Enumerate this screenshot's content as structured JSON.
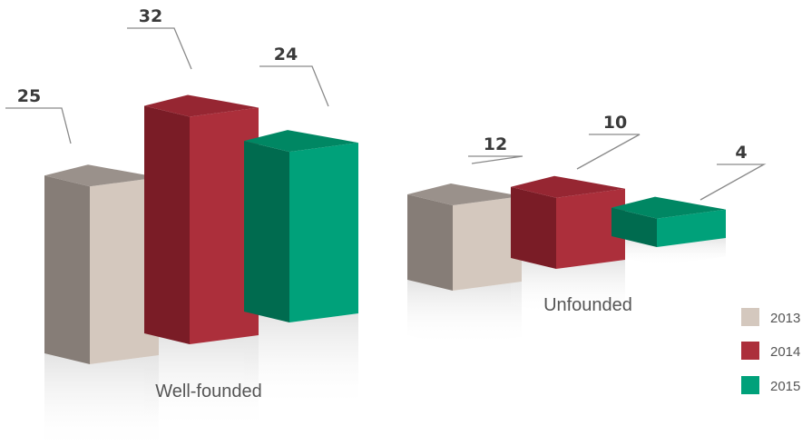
{
  "chart_data": {
    "type": "bar",
    "title": "",
    "xlabel": "",
    "ylabel": "",
    "categories": [
      "Well-founded",
      "Unfounded"
    ],
    "series": [
      {
        "name": "2013",
        "values": [
          25,
          12
        ]
      },
      {
        "name": "2014",
        "values": [
          32,
          10
        ]
      },
      {
        "name": "2015",
        "values": [
          24,
          4
        ]
      }
    ],
    "ylim": [
      0,
      32
    ],
    "style": "3d-bars",
    "grid": false,
    "legend_position": "bottom-right"
  },
  "colors": {
    "2013": {
      "front": "#d4c8be",
      "side": "#867d77",
      "top": "#9a918b"
    },
    "2014": {
      "front": "#ac2f3b",
      "side": "#7a1c26",
      "top": "#962632"
    },
    "2015": {
      "front": "#00a17a",
      "side": "#006b4f",
      "top": "#008763"
    },
    "leader_line": "#8a8a8a",
    "text": "#3a3a3a"
  }
}
